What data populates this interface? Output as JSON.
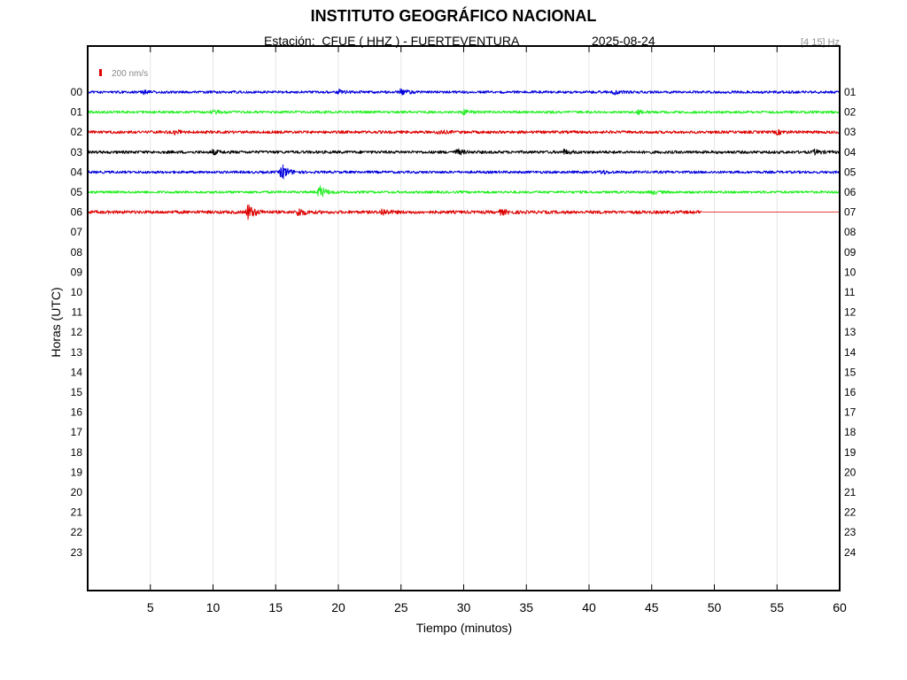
{
  "header": {
    "title": "INSTITUTO GEOGRÁFICO NACIONAL",
    "station": "Estación:  CFUE ( HHZ ) - FUERTEVENTURA",
    "date": "2025-08-24",
    "band": "[4 15] Hz"
  },
  "chart_data": {
    "type": "line",
    "title": "INSTITUTO GEOGRÁFICO NACIONAL",
    "xlabel": "Tiempo (minutos)",
    "ylabel": "Horas (UTC)",
    "xlim": [
      0,
      60
    ],
    "ylim": [
      0,
      24
    ],
    "x_ticks": [
      5,
      10,
      15,
      20,
      25,
      30,
      35,
      40,
      45,
      50,
      55,
      60
    ],
    "left_labels": [
      "00",
      "01",
      "02",
      "03",
      "04",
      "05",
      "06",
      "07",
      "08",
      "09",
      "10",
      "11",
      "12",
      "13",
      "14",
      "15",
      "16",
      "17",
      "18",
      "19",
      "20",
      "21",
      "22",
      "23"
    ],
    "right_labels": [
      "01",
      "02",
      "03",
      "04",
      "05",
      "06",
      "07",
      "08",
      "09",
      "10",
      "11",
      "12",
      "13",
      "14",
      "15",
      "16",
      "17",
      "18",
      "19",
      "20",
      "21",
      "22",
      "23",
      "24"
    ],
    "grid": "vertical",
    "scale_bar": {
      "label": "200 nm/s",
      "color": "#e00000"
    },
    "series": [
      {
        "hour": 0,
        "color": "#0000dd",
        "end_min": 60,
        "noise": 0.9,
        "bursts": [
          {
            "min": 4.5,
            "amp": 1.2
          },
          {
            "min": 20,
            "amp": 1.5
          },
          {
            "min": 25,
            "amp": 1.8
          },
          {
            "min": 42,
            "amp": 1.3
          }
        ]
      },
      {
        "hour": 1,
        "color": "#22ee22",
        "end_min": 60,
        "noise": 0.9,
        "bursts": [
          {
            "min": 10,
            "amp": 1.3
          },
          {
            "min": 30,
            "amp": 1.3
          },
          {
            "min": 44,
            "amp": 1.3
          }
        ]
      },
      {
        "hour": 2,
        "color": "#dd0000",
        "end_min": 60,
        "noise": 1.0,
        "bursts": [
          {
            "min": 7,
            "amp": 1.3
          },
          {
            "min": 28,
            "amp": 1.3
          },
          {
            "min": 55,
            "amp": 1.3
          }
        ]
      },
      {
        "hour": 3,
        "color": "#000000",
        "end_min": 60,
        "noise": 1.0,
        "bursts": [
          {
            "min": 10,
            "amp": 1.4
          },
          {
            "min": 29.5,
            "amp": 1.8
          },
          {
            "min": 38,
            "amp": 1.4
          },
          {
            "min": 58,
            "amp": 1.4
          }
        ]
      },
      {
        "hour": 4,
        "color": "#0000dd",
        "end_min": 60,
        "noise": 0.9,
        "bursts": [
          {
            "min": 15.5,
            "amp": 5.5
          },
          {
            "min": 41,
            "amp": 1.3
          }
        ]
      },
      {
        "hour": 5,
        "color": "#22ee22",
        "end_min": 60,
        "noise": 0.9,
        "bursts": [
          {
            "min": 18.5,
            "amp": 4.5
          },
          {
            "min": 45,
            "amp": 1.3
          }
        ]
      },
      {
        "hour": 6,
        "color": "#dd0000",
        "end_min": 49,
        "noise": 1.1,
        "bursts": [
          {
            "min": 12.8,
            "amp": 5.5
          },
          {
            "min": 16.8,
            "amp": 3.0
          },
          {
            "min": 23.5,
            "amp": 2.2
          },
          {
            "min": 33,
            "amp": 1.6
          }
        ]
      }
    ]
  }
}
